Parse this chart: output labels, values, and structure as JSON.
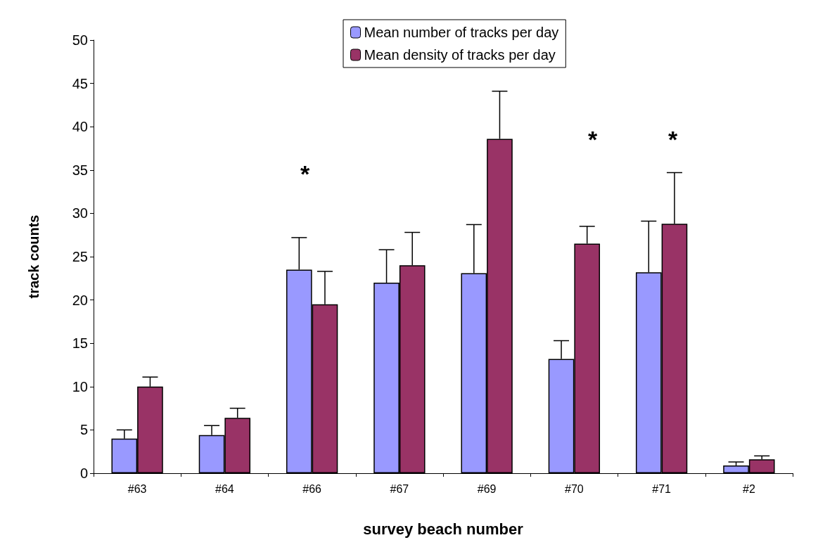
{
  "chart_data": {
    "type": "bar",
    "xlabel": "survey beach number",
    "ylabel": "track counts",
    "categories": [
      "#63",
      "#64",
      "#66",
      "#67",
      "#69",
      "#70",
      "#71",
      "#2"
    ],
    "series": [
      {
        "name": "Mean number of tracks per day",
        "color": "#9999ff",
        "values": [
          4.0,
          4.4,
          23.5,
          22.0,
          23.1,
          13.2,
          23.2,
          0.9
        ],
        "errors": [
          [
            4.0,
            5.0
          ],
          [
            4.4,
            5.5
          ],
          [
            23.5,
            27.2
          ],
          [
            22.0,
            25.8
          ],
          [
            23.1,
            28.7
          ],
          [
            13.2,
            15.3
          ],
          [
            23.2,
            29.1
          ],
          [
            0.9,
            1.3
          ]
        ]
      },
      {
        "name": "Mean density of tracks per day",
        "color": "#993366",
        "values": [
          10.0,
          6.4,
          19.5,
          24.0,
          38.6,
          26.5,
          28.8,
          1.6
        ],
        "errors": [
          [
            10.0,
            11.1
          ],
          [
            6.4,
            7.5
          ],
          [
            19.5,
            23.3
          ],
          [
            24.0,
            27.8
          ],
          [
            38.6,
            44.1
          ],
          [
            26.5,
            28.5
          ],
          [
            28.8,
            34.7
          ],
          [
            1.6,
            2.0
          ]
        ]
      }
    ],
    "annotations": [
      "*",
      "*",
      "*"
    ],
    "ylim": [
      0,
      50
    ],
    "yticks": [
      0,
      5,
      10,
      15,
      20,
      25,
      30,
      35,
      40,
      45,
      50
    ],
    "grid": false,
    "legend": "top"
  }
}
